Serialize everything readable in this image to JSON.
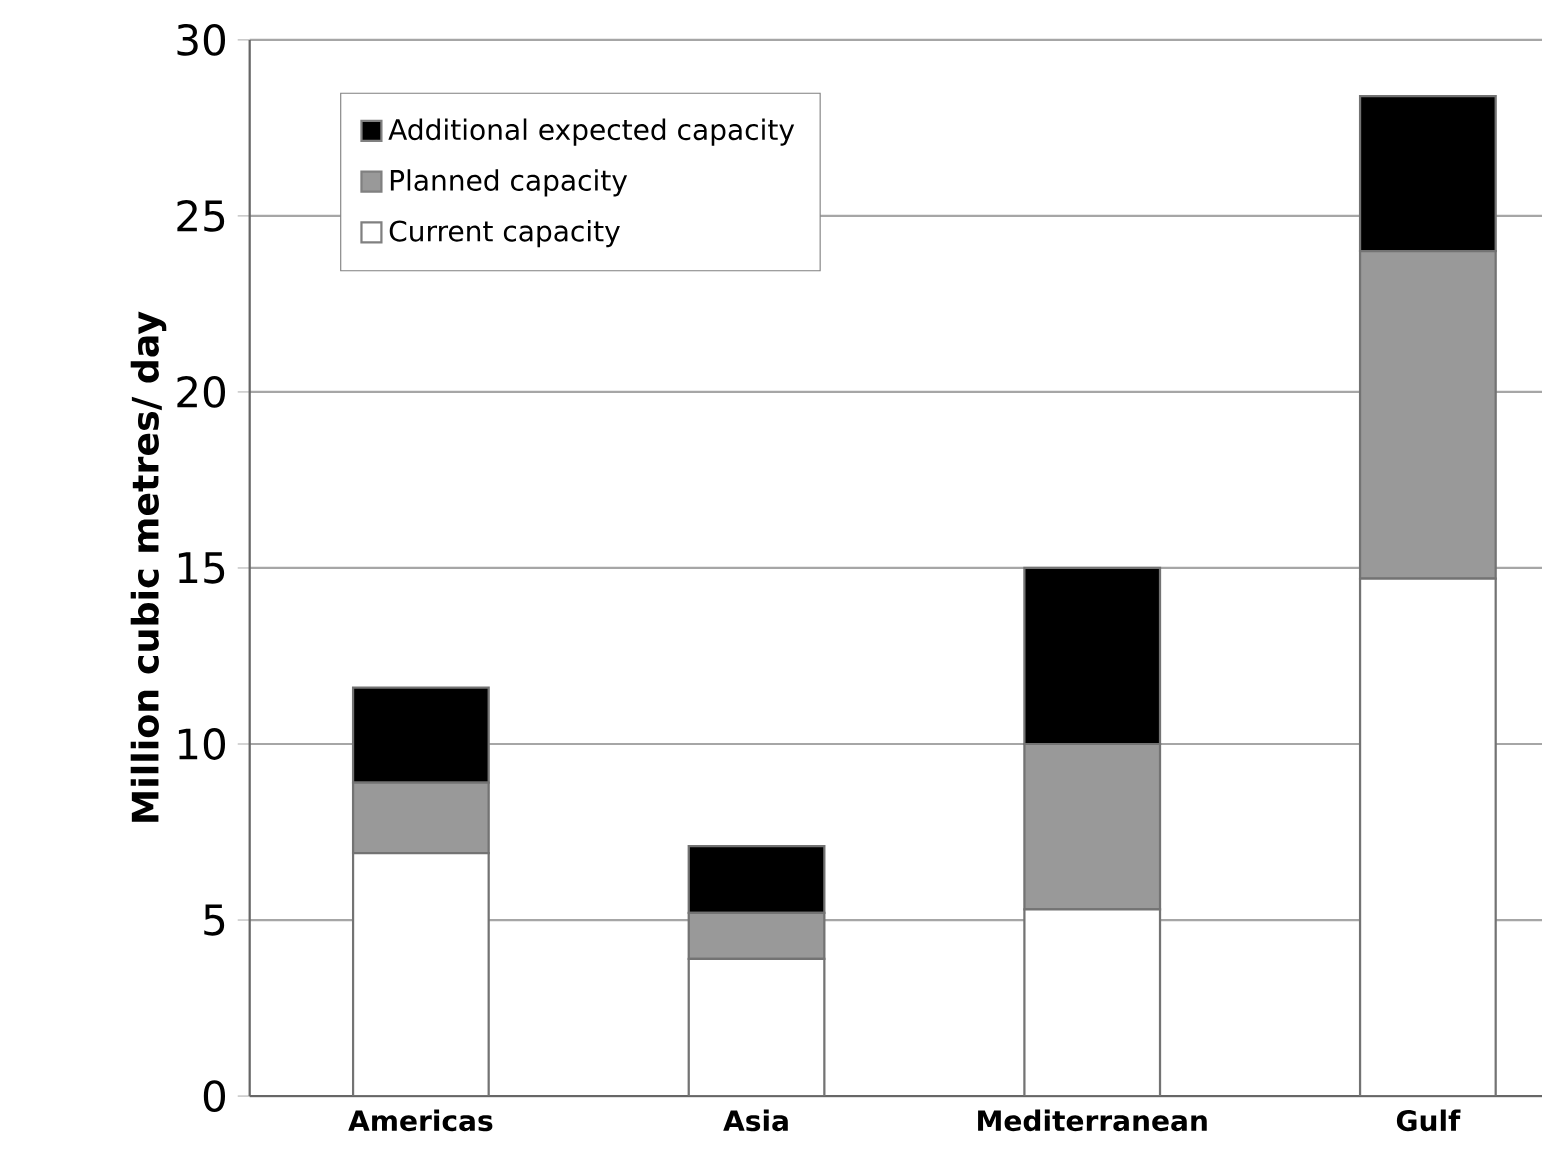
{
  "chart_data": {
    "type": "bar",
    "stacked": true,
    "ylabel": "Million cubic metres/ day",
    "categories": [
      "Americas",
      "Asia",
      "Mediterranean",
      "Gulf"
    ],
    "series": [
      {
        "name": "Current capacity",
        "color": "#ffffff",
        "values": [
          6.9,
          3.9,
          5.3,
          14.7
        ]
      },
      {
        "name": "Planned capacity",
        "color": "#999999",
        "values": [
          2.0,
          1.3,
          4.7,
          9.3
        ]
      },
      {
        "name": "Additional expected capacity",
        "color": "#000000",
        "values": [
          2.7,
          1.9,
          5.0,
          4.4
        ]
      }
    ],
    "ylim": [
      0,
      30
    ],
    "yticks": [
      0,
      5,
      10,
      15,
      20,
      25,
      30
    ],
    "grid": "y",
    "legend": "top left"
  }
}
